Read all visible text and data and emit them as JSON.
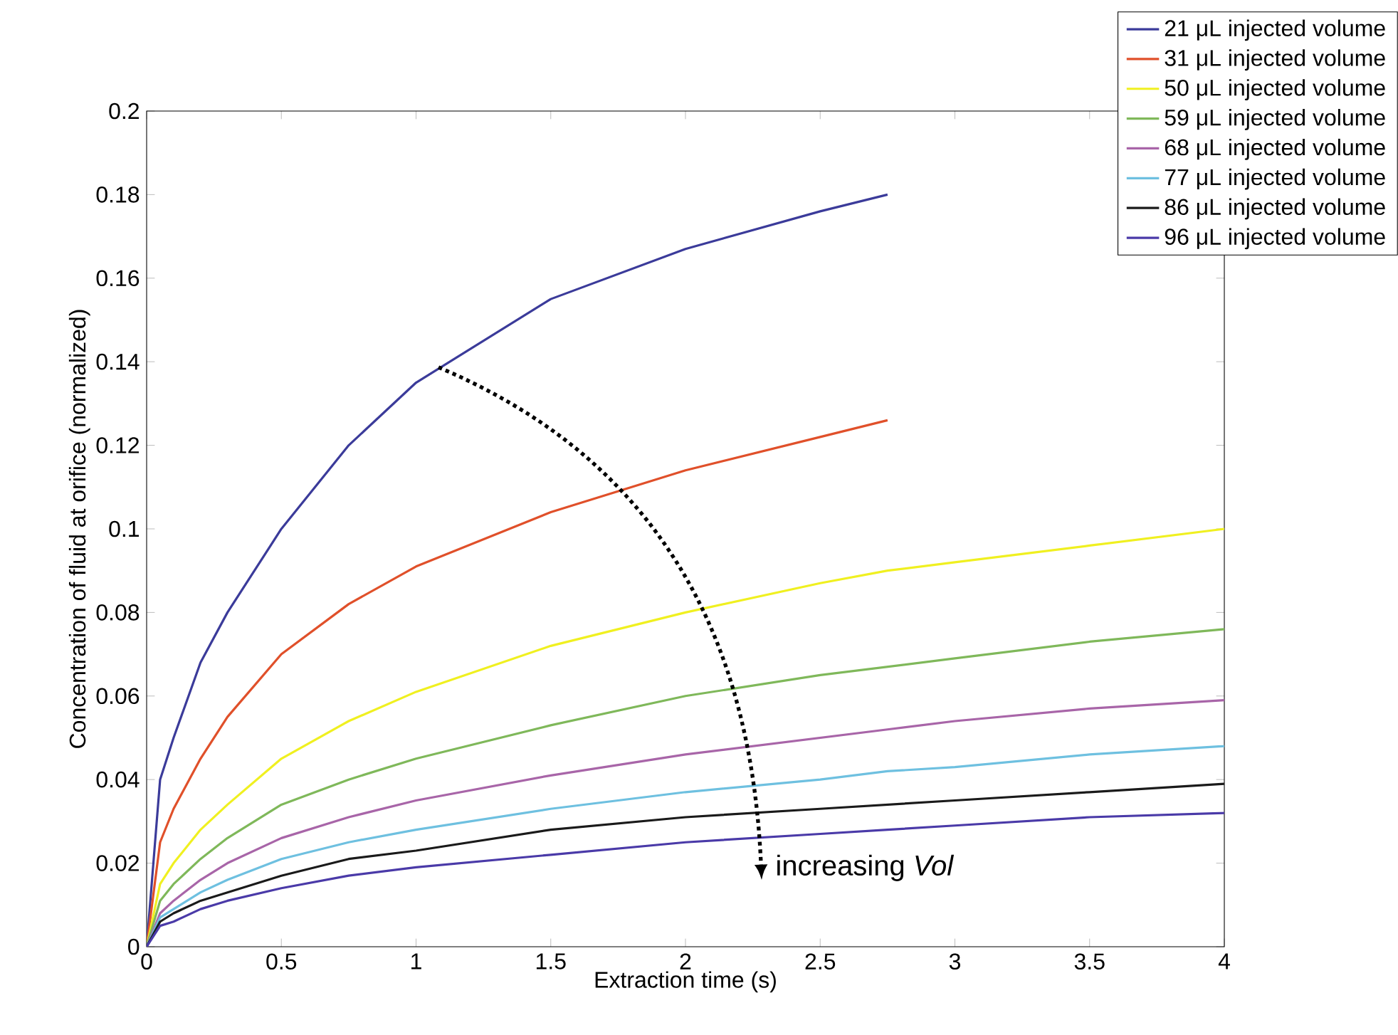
{
  "chart_data": {
    "type": "line",
    "xlabel": "Extraction time (s)",
    "ylabel": "Concentration of fluid at orifice (normalized)",
    "x": [
      0,
      0.05,
      0.1,
      0.2,
      0.3,
      0.5,
      0.75,
      1,
      1.5,
      2,
      2.5,
      2.75,
      3,
      3.5,
      4
    ],
    "series": [
      {
        "name": "21 μL injected volume",
        "color": "#3b3b9a",
        "values": [
          0,
          0.04,
          0.05,
          0.068,
          0.08,
          0.1,
          0.12,
          0.135,
          0.155,
          0.167,
          0.176,
          0.18,
          null,
          null,
          null
        ]
      },
      {
        "name": "31 μL injected volume",
        "color": "#e0502a",
        "values": [
          0,
          0.025,
          0.033,
          0.045,
          0.055,
          0.07,
          0.082,
          0.091,
          0.104,
          0.114,
          0.122,
          0.126,
          null,
          null,
          null
        ]
      },
      {
        "name": "50 μL injected volume",
        "color": "#f0f020",
        "values": [
          0,
          0.015,
          0.02,
          0.028,
          0.034,
          0.045,
          0.054,
          0.061,
          0.072,
          0.08,
          0.087,
          0.09,
          0.092,
          0.096,
          0.1
        ]
      },
      {
        "name": "59 μL injected volume",
        "color": "#7fb85a",
        "values": [
          0,
          0.011,
          0.015,
          0.021,
          0.026,
          0.034,
          0.04,
          0.045,
          0.053,
          0.06,
          0.065,
          0.067,
          0.069,
          0.073,
          0.076
        ]
      },
      {
        "name": "68 μL injected volume",
        "color": "#a865a8",
        "values": [
          0,
          0.008,
          0.011,
          0.016,
          0.02,
          0.026,
          0.031,
          0.035,
          0.041,
          0.046,
          0.05,
          0.052,
          0.054,
          0.057,
          0.059
        ]
      },
      {
        "name": "77 μL injected volume",
        "color": "#6ec0e0",
        "values": [
          0,
          0.007,
          0.009,
          0.013,
          0.016,
          0.021,
          0.025,
          0.028,
          0.033,
          0.037,
          0.04,
          0.042,
          0.043,
          0.046,
          0.048
        ]
      },
      {
        "name": "86 μL injected volume",
        "color": "#1a1a1a",
        "values": [
          0,
          0.006,
          0.008,
          0.011,
          0.013,
          0.017,
          0.021,
          0.023,
          0.028,
          0.031,
          0.033,
          0.034,
          0.035,
          0.037,
          0.039
        ]
      },
      {
        "name": "96 μL injected volume",
        "color": "#4a3aa8",
        "values": [
          0,
          0.005,
          0.006,
          0.009,
          0.011,
          0.014,
          0.017,
          0.019,
          0.022,
          0.025,
          0.027,
          0.028,
          0.029,
          0.031,
          0.032
        ]
      }
    ],
    "xlim": [
      0,
      4
    ],
    "ylim": [
      0,
      0.2
    ],
    "xticks": [
      0,
      0.5,
      1,
      1.5,
      2,
      2.5,
      3,
      3.5,
      4
    ],
    "yticks": [
      0,
      0.02,
      0.04,
      0.06,
      0.08,
      0.1,
      0.12,
      0.14,
      0.16,
      0.18,
      0.2
    ],
    "legend": "top right",
    "annotations": [
      "increasing *Vol*"
    ]
  }
}
